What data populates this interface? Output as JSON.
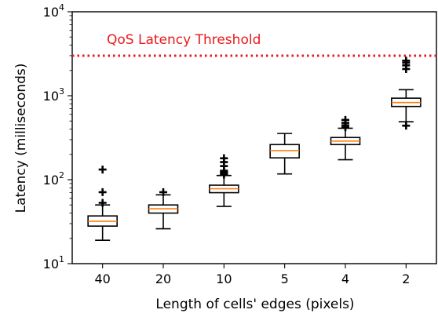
{
  "chart_data": {
    "type": "box",
    "xlabel": "Length of cells' edges (pixels)",
    "ylabel": "Latency (milliseconds)",
    "y_scale": "log",
    "ylim": [
      10,
      10000
    ],
    "y_ticks": [
      {
        "value": 10,
        "base": "10",
        "exp": "1"
      },
      {
        "value": 100,
        "base": "10",
        "exp": "2"
      },
      {
        "value": 1000,
        "base": "10",
        "exp": "3"
      },
      {
        "value": 10000,
        "base": "10",
        "exp": "4"
      }
    ],
    "categories": [
      "40",
      "20",
      "10",
      "5",
      "4",
      "2"
    ],
    "boxes": [
      {
        "category": "40",
        "whisker_low": 19,
        "q1": 28,
        "median": 32,
        "q3": 37,
        "whisker_high": 50,
        "outliers": [
          53,
          71,
          132
        ]
      },
      {
        "category": "20",
        "whisker_low": 26,
        "q1": 40,
        "median": 45,
        "q3": 50,
        "whisker_high": 66,
        "outliers": [
          71
        ]
      },
      {
        "category": "10",
        "whisker_low": 48,
        "q1": 70,
        "median": 78,
        "q3": 86,
        "whisker_high": 112,
        "outliers": [
          115,
          118,
          121,
          124,
          128,
          145,
          162,
          180
        ]
      },
      {
        "category": "5",
        "whisker_low": 117,
        "q1": 182,
        "median": 222,
        "q3": 262,
        "whisker_high": 355,
        "outliers": []
      },
      {
        "category": "4",
        "whisker_low": 173,
        "q1": 262,
        "median": 288,
        "q3": 318,
        "whisker_high": 410,
        "outliers": [
          420,
          445,
          475,
          515
        ]
      },
      {
        "category": "2",
        "whisker_low": 490,
        "q1": 745,
        "median": 830,
        "q3": 935,
        "whisker_high": 1180,
        "outliers": [
          440,
          2080,
          2300,
          2470,
          2620
        ]
      }
    ],
    "threshold": {
      "label": "QoS Latency Threshold",
      "value": 3000,
      "color": "#e8191b"
    },
    "colors": {
      "box_edge": "#000000",
      "median": "#ff7f0e",
      "threshold": "#e8191b"
    }
  }
}
